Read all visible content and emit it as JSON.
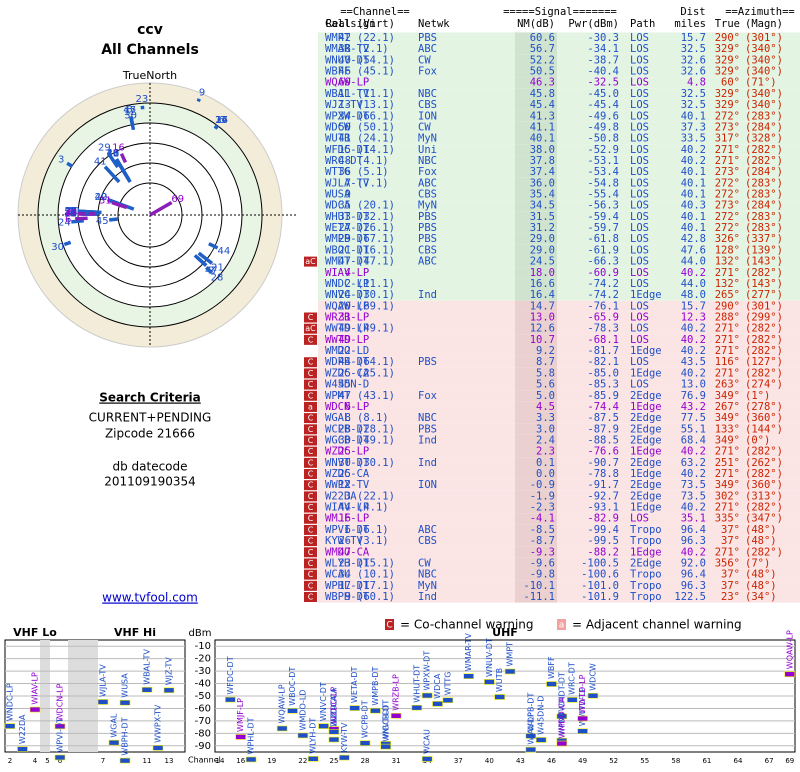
{
  "left": {
    "title": "ccv",
    "subtitle": "All Channels",
    "north": "TrueNorth",
    "criteria_heading": "Search Criteria",
    "criteria": "CURRENT+PENDING",
    "zipcode": "Zipcode 21666",
    "datecode_label": "db datecode",
    "datecode": "201109190354",
    "link": "www.tvfool.com"
  },
  "header": {
    "channel": "==Channel==",
    "signal": "=====Signal=======",
    "dist": "Dist",
    "azimuth": "==Azimuth==",
    "callsign": "Callsign",
    "real": "Real",
    "virt": "(Virt)",
    "netwk": "Netwk",
    "nm": "NM(dB)",
    "pwr": "Pwr(dBm)",
    "path": "Path",
    "miles": "miles",
    "true": "True",
    "magn": "(Magn)"
  },
  "legend": {
    "co_icon": "C",
    "co": "= Co-channel warning",
    "adj_icon": "a",
    "adj": "= Adjacent channel warning"
  },
  "table": {
    "callsign": [
      "WMPT",
      "WMAR-TV",
      "WNUV-DT",
      "WBFF",
      "WQAW-LP",
      "WBAL-TV",
      "WJZ-TV",
      "WPXW-DT",
      "WDCW",
      "WUTB",
      "WFDC-DT",
      "WRC-DT",
      "WTTG",
      "WJLA-TV",
      "WUSA",
      "WDCA",
      "WHUT-DT",
      "WETA-DT",
      "WMPB-DT",
      "WBOC-DT",
      "WMDT-DT",
      "WIAV-LP",
      "WNDC-LP",
      "WNVC-DT",
      "WQAW-LP",
      "WRZB-LP",
      "WWTD-LP",
      "WWTD-LP",
      "WMDO-LD",
      "WDPB-DT",
      "WZDC-CA",
      "W45DN-D",
      "WPMT",
      "WDCN-LP",
      "WGAL",
      "WCPB-DT",
      "WGCB-DT",
      "WZDC-LP",
      "WNVT-DT",
      "WZDC-CA",
      "WWPX-TV",
      "W22DA",
      "WIAV-LP",
      "WMJF-LP",
      "WPVI-DT",
      "KYW-TV",
      "WMDO-CA",
      "WLYH-DT",
      "WCAU",
      "WPHL-DT",
      "WBPH-DT"
    ],
    "real": [
      42,
      38,
      40,
      46,
      69,
      11,
      13,
      34,
      50,
      41,
      15,
      48,
      36,
      7,
      9,
      35,
      33,
      27,
      29,
      21,
      47,
      4,
      2,
      24,
      20,
      31,
      49,
      49,
      22,
      44,
      25,
      45,
      47,
      6,
      8,
      28,
      30,
      25,
      30,
      25,
      12,
      3,
      44,
      16,
      6,
      26,
      47,
      23,
      34,
      17,
      9
    ],
    "virt": [
      "(22.1)",
      "(2.1)",
      "(54.1)",
      "(45.1)",
      null,
      "(11.1)",
      "(13.1)",
      "(66.1)",
      "(50.1)",
      "(24.1)",
      "(14.1)",
      "(4.1)",
      "(5.1)",
      "(7.1)",
      null,
      "(20.1)",
      "(32.1)",
      "(26.1)",
      "(67.1)",
      "(16.1)",
      "(47.1)",
      null,
      "(11.1)",
      "(30.1)",
      "(69.1)",
      null,
      "(49.1)",
      null,
      null,
      "(64.1)",
      "(25.1)",
      null,
      "(43.1)",
      null,
      "(8.1)",
      "(28.1)",
      "(49.1)",
      null,
      "(30.1)",
      null,
      null,
      "(22.1)",
      "(4.1)",
      null,
      "(6.1)",
      "(3.1)",
      null,
      "(15.1)",
      "(10.1)",
      "(17.1)",
      "(60.1)"
    ],
    "netwk": [
      "PBS",
      "ABC",
      "CW",
      "Fox",
      null,
      "NBC",
      "CBS",
      "ION",
      "CW",
      "MyN",
      "Uni",
      "NBC",
      "Fox",
      "ABC",
      "CBS",
      "MyN",
      "PBS",
      "PBS",
      "PBS",
      "CBS",
      "ABC",
      null,
      null,
      "Ind",
      null,
      null,
      null,
      null,
      null,
      "PBS",
      null,
      null,
      "Fox",
      null,
      "NBC",
      "PBS",
      "Ind",
      null,
      "Ind",
      null,
      "ION",
      null,
      null,
      null,
      "ABC",
      "CBS",
      null,
      "CW",
      "NBC",
      "MyN",
      "Ind"
    ],
    "nm": [
      60.6,
      56.7,
      52.2,
      50.5,
      46.3,
      45.8,
      45.4,
      41.3,
      41.1,
      40.1,
      {
        "value": 38,
        "label": "38.0"
      },
      37.8,
      37.4,
      {
        "value": 36,
        "label": "36.0"
      },
      35.4,
      34.5,
      31.5,
      31.2,
      {
        "value": 29,
        "label": "29.0"
      },
      {
        "value": 29,
        "label": "29.0"
      },
      24.5,
      {
        "value": 18,
        "label": "18.0"
      },
      16.6,
      16.4,
      14.7,
      {
        "value": 13,
        "label": "13.0"
      },
      12.6,
      10.7,
      9.2,
      8.7,
      5.8,
      5.6,
      {
        "value": 5,
        "label": "5.0"
      },
      4.5,
      3.3,
      {
        "value": 3,
        "label": "3.0"
      },
      2.4,
      2.3,
      0.1,
      {
        "value": 0,
        "label": "0.0"
      },
      -0.9,
      -1.9,
      -2.3,
      -4.1,
      -8.5,
      -8.7,
      -9.3,
      -9.6,
      -9.8,
      -10.1,
      -11.1
    ],
    "pwr": [
      -30.3,
      -34.1,
      -38.7,
      -40.4,
      -32.5,
      {
        "value": -45,
        "label": "-45.0"
      },
      -45.4,
      -49.6,
      -49.8,
      -50.8,
      -52.9,
      -53.1,
      -53.4,
      -54.8,
      -55.4,
      -56.3,
      -59.4,
      -59.7,
      -61.8,
      -61.9,
      -66.3,
      -60.9,
      -74.2,
      -74.2,
      -76.1,
      -65.9,
      -78.3,
      -68.1,
      -81.7,
      -82.1,
      {
        "value": -85,
        "label": "-85.0"
      },
      -85.3,
      -85.9,
      -74.4,
      -87.5,
      -87.9,
      -88.5,
      -76.6,
      -90.7,
      -78.8,
      -91.7,
      -92.7,
      -93.1,
      -82.9,
      -99.4,
      -99.5,
      -88.2,
      -100.5,
      -100.6,
      {
        "value": -101,
        "label": "-101.0"
      },
      -101.9
    ],
    "path": [
      "LOS",
      "LOS",
      "LOS",
      "LOS",
      "LOS",
      "LOS",
      "LOS",
      "LOS",
      "LOS",
      "LOS",
      "LOS",
      "LOS",
      "LOS",
      "LOS",
      "LOS",
      "LOS",
      "LOS",
      "LOS",
      "LOS",
      "LOS",
      "LOS",
      "LOS",
      "LOS",
      "1Edge",
      "LOS",
      "LOS",
      "LOS",
      "LOS",
      "1Edge",
      "LOS",
      "1Edge",
      "LOS",
      "2Edge",
      "1Edge",
      "2Edge",
      "2Edge",
      "2Edge",
      "1Edge",
      "2Edge",
      "1Edge",
      "2Edge",
      "2Edge",
      "1Edge",
      "LOS",
      "Tropo",
      "Tropo",
      "1Edge",
      "2Edge",
      "Tropo",
      "Tropo",
      "Tropo"
    ],
    "miles": [
      15.7,
      32.5,
      32.6,
      32.6,
      4.8,
      32.5,
      32.5,
      40.1,
      37.3,
      33.5,
      40.2,
      40.2,
      40.1,
      40.1,
      40.1,
      40.3,
      40.1,
      40.1,
      42.8,
      47.6,
      {
        "value": 44,
        "label": "44.0"
      },
      40.2,
      {
        "value": 44,
        "label": "44.0"
      },
      {
        "value": 48,
        "label": "48.0"
      },
      15.7,
      12.3,
      40.2,
      40.2,
      40.2,
      43.5,
      40.2,
      {
        "value": 13,
        "label": "13.0"
      },
      76.9,
      43.2,
      77.5,
      55.1,
      68.4,
      40.2,
      63.2,
      40.2,
      73.5,
      73.5,
      40.2,
      35.1,
      96.4,
      96.3,
      40.2,
      {
        "value": 92,
        "label": "92.0"
      },
      96.4,
      96.3,
      122.5
    ],
    "az_true": [
      {
        "value": 290,
        "label": "290°"
      },
      {
        "value": 329,
        "label": "329°"
      },
      {
        "value": 329,
        "label": "329°"
      },
      {
        "value": 329,
        "label": "329°"
      },
      {
        "value": 60,
        "label": "60°"
      },
      {
        "value": 329,
        "label": "329°"
      },
      {
        "value": 329,
        "label": "329°"
      },
      {
        "value": 272,
        "label": "272°"
      },
      {
        "value": 273,
        "label": "273°"
      },
      {
        "value": 317,
        "label": "317°"
      },
      {
        "value": 271,
        "label": "271°"
      },
      {
        "value": 271,
        "label": "271°"
      },
      {
        "value": 273,
        "label": "273°"
      },
      {
        "value": 272,
        "label": "272°"
      },
      {
        "value": 272,
        "label": "272°"
      },
      {
        "value": 273,
        "label": "273°"
      },
      {
        "value": 272,
        "label": "272°"
      },
      {
        "value": 272,
        "label": "272°"
      },
      {
        "value": 326,
        "label": "326°"
      },
      {
        "value": 128,
        "label": "128°"
      },
      {
        "value": 132,
        "label": "132°"
      },
      {
        "value": 271,
        "label": "271°"
      },
      {
        "value": 132,
        "label": "132°"
      },
      {
        "value": 265,
        "label": "265°"
      },
      {
        "value": 290,
        "label": "290°"
      },
      {
        "value": 288,
        "label": "288°"
      },
      {
        "value": 271,
        "label": "271°"
      },
      {
        "value": 271,
        "label": "271°"
      },
      {
        "value": 271,
        "label": "271°"
      },
      {
        "value": 116,
        "label": "116°"
      },
      {
        "value": 271,
        "label": "271°"
      },
      {
        "value": 263,
        "label": "263°"
      },
      {
        "value": 349,
        "label": "349°"
      },
      {
        "value": 267,
        "label": "267°"
      },
      {
        "value": 349,
        "label": "349°"
      },
      {
        "value": 133,
        "label": "133°"
      },
      {
        "value": 349,
        "label": "349°"
      },
      {
        "value": 271,
        "label": "271°"
      },
      {
        "value": 251,
        "label": "251°"
      },
      {
        "value": 271,
        "label": "271°"
      },
      {
        "value": 349,
        "label": "349°"
      },
      {
        "value": 302,
        "label": "302°"
      },
      {
        "value": 271,
        "label": "271°"
      },
      {
        "value": 335,
        "label": "335°"
      },
      {
        "value": 37,
        "label": "37°"
      },
      {
        "value": 37,
        "label": "37°"
      },
      {
        "value": 271,
        "label": "271°"
      },
      {
        "value": 356,
        "label": "356°"
      },
      {
        "value": 37,
        "label": "37°"
      },
      {
        "value": 37,
        "label": "37°"
      },
      {
        "value": 23,
        "label": "23°"
      }
    ],
    "az_magn": [
      "(301°)",
      "(340°)",
      "(340°)",
      "(340°)",
      "(71°)",
      "(340°)",
      "(340°)",
      "(283°)",
      "(284°)",
      "(328°)",
      "(282°)",
      "(282°)",
      "(284°)",
      "(283°)",
      "(283°)",
      "(284°)",
      "(283°)",
      "(283°)",
      "(337°)",
      "(139°)",
      "(143°)",
      "(282°)",
      "(143°)",
      "(277°)",
      "(301°)",
      "(299°)",
      "(282°)",
      "(282°)",
      "(282°)",
      "(127°)",
      "(282°)",
      "(274°)",
      "(1°)",
      "(278°)",
      "(360°)",
      "(144°)",
      "(0°)",
      "(282°)",
      "(262°)",
      "(282°)",
      "(360°)",
      "(313°)",
      "(282°)",
      "(347°)",
      "(48°)",
      "(48°)",
      "(282°)",
      "(7°)",
      "(48°)",
      "(48°)",
      "(34°)"
    ],
    "warn": [
      null,
      null,
      null,
      null,
      null,
      null,
      null,
      null,
      null,
      null,
      null,
      null,
      null,
      null,
      null,
      null,
      null,
      null,
      null,
      null,
      "aC",
      null,
      null,
      null,
      null,
      "C",
      "aC",
      "C",
      null,
      "C",
      "C",
      "C",
      "C",
      "a",
      "C",
      "C",
      "C",
      "C",
      "C",
      "C",
      "C",
      "C",
      "C",
      "C",
      "C",
      "C",
      "C",
      "C",
      "C",
      "C",
      "C"
    ],
    "color": [
      "#1f4fc8",
      "#1f4fc8",
      "#1f4fc8",
      "#1f4fc8",
      "#9400d3",
      "#1f4fc8",
      "#1f4fc8",
      "#1f4fc8",
      "#1f4fc8",
      "#1f4fc8",
      "#1f4fc8",
      "#1f4fc8",
      "#1f4fc8",
      "#1f4fc8",
      "#1f4fc8",
      "#1f4fc8",
      "#1f4fc8",
      "#1f4fc8",
      "#1f4fc8",
      "#1f4fc8",
      "#1f4fc8",
      "#9400d3",
      "#1f4fc8",
      "#1f4fc8",
      "#1f4fc8",
      "#9400d3",
      "#1f4fc8",
      "#9400d3",
      "#1f4fc8",
      "#1f4fc8",
      "#1f4fc8",
      "#1f4fc8",
      "#1f4fc8",
      "#9400d3",
      "#1f4fc8",
      "#1f4fc8",
      "#1f4fc8",
      "#9400d3",
      "#1f4fc8",
      "#1f4fc8",
      "#1f4fc8",
      "#1f4fc8",
      "#1f4fc8",
      "#9400d3",
      "#1f4fc8",
      "#1f4fc8",
      "#9400d3",
      "#1f4fc8",
      "#1f4fc8",
      "#1f4fc8",
      "#1f4fc8"
    ]
  },
  "spectrum": {
    "vhf_lo": "VHF Lo",
    "vhf_hi": "VHF Hi",
    "uhf": "UHF",
    "y_label": "dBm",
    "x_label": "Channel",
    "ylim": [
      -5,
      -95
    ],
    "yticks": [
      -10,
      -20,
      -30,
      -40,
      -50,
      -60,
      -70,
      -80,
      -90
    ],
    "vhf_ticks": [
      2,
      4,
      5,
      6,
      7,
      9,
      11,
      13
    ],
    "uhf_ticks": [
      14,
      16,
      19,
      22,
      25,
      28,
      31,
      34,
      37,
      40,
      43,
      46,
      49,
      52,
      55,
      58,
      61,
      64,
      67,
      69
    ]
  }
}
